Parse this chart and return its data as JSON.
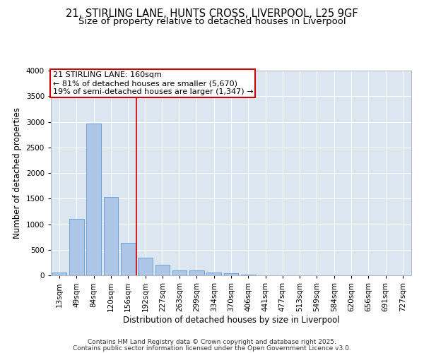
{
  "title_line1": "21, STIRLING LANE, HUNTS CROSS, LIVERPOOL, L25 9GF",
  "title_line2": "Size of property relative to detached houses in Liverpool",
  "xlabel": "Distribution of detached houses by size in Liverpool",
  "ylabel": "Number of detached properties",
  "bar_labels": [
    "13sqm",
    "49sqm",
    "84sqm",
    "120sqm",
    "156sqm",
    "192sqm",
    "227sqm",
    "263sqm",
    "299sqm",
    "334sqm",
    "370sqm",
    "406sqm",
    "441sqm",
    "477sqm",
    "513sqm",
    "549sqm",
    "584sqm",
    "620sqm",
    "656sqm",
    "691sqm",
    "727sqm"
  ],
  "bar_values": [
    55,
    1110,
    2970,
    1530,
    635,
    350,
    205,
    90,
    90,
    60,
    35,
    20,
    0,
    0,
    0,
    0,
    0,
    0,
    0,
    0,
    0
  ],
  "bar_color": "#adc6e8",
  "bar_edgecolor": "#5b9bd5",
  "background_color": "#dce6f0",
  "vline_x": 4.5,
  "vline_color": "#cc0000",
  "annotation_text": "21 STIRLING LANE: 160sqm\n← 81% of detached houses are smaller (5,670)\n19% of semi-detached houses are larger (1,347) →",
  "annotation_box_facecolor": "#ffffff",
  "annotation_box_edgecolor": "#cc0000",
  "ylim": [
    0,
    4000
  ],
  "yticks": [
    0,
    500,
    1000,
    1500,
    2000,
    2500,
    3000,
    3500,
    4000
  ],
  "footer_line1": "Contains HM Land Registry data © Crown copyright and database right 2025.",
  "footer_line2": "Contains public sector information licensed under the Open Government Licence v3.0.",
  "title_fontsize": 10.5,
  "subtitle_fontsize": 9.5,
  "axis_label_fontsize": 8.5,
  "tick_fontsize": 7.5,
  "annotation_fontsize": 8,
  "footer_fontsize": 6.5
}
